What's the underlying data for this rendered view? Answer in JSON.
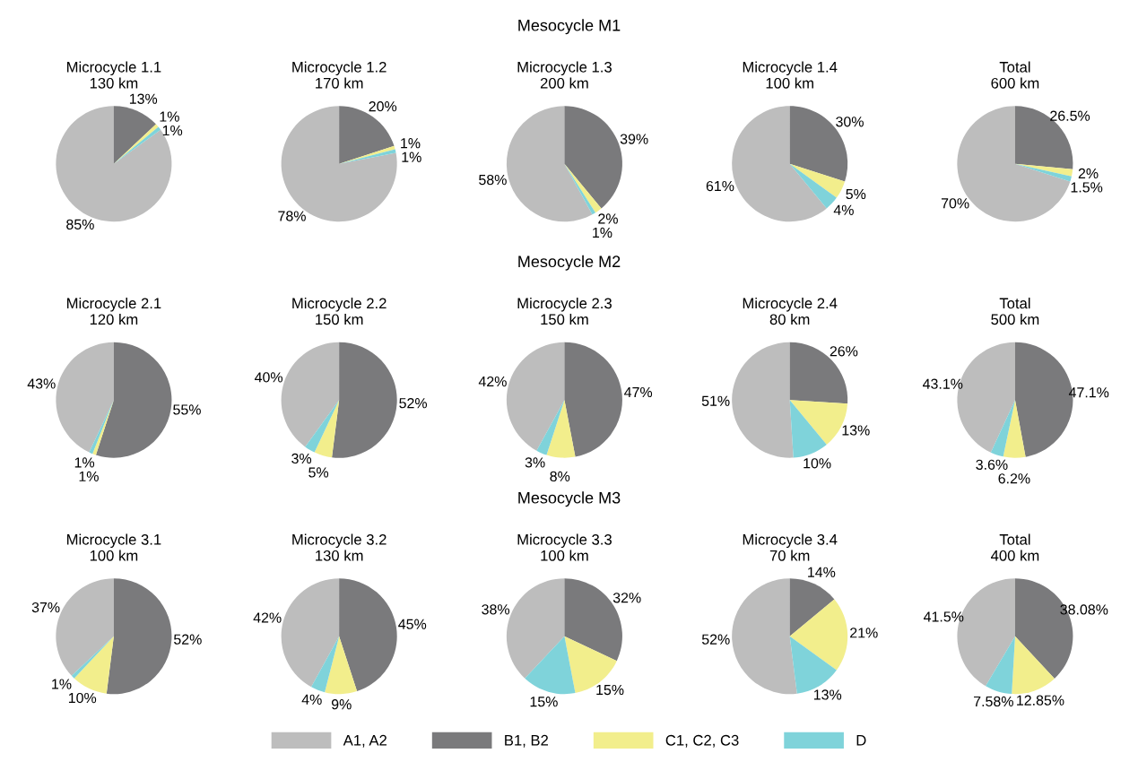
{
  "chart_data": [
    {
      "type": "pie",
      "title": "Microcycle 1.1",
      "subtitle": "130 km",
      "annotations": [
        "Mesocycle M1"
      ],
      "legend": "bottom",
      "categories": [
        "A1, A2",
        "B1, B2",
        "C1, C2, C3",
        "D"
      ],
      "colors": [
        "#bdbdbd",
        "#7a7a7c",
        "#f2ee8c",
        "#7fd3da"
      ],
      "values": [
        85,
        13,
        1,
        1
      ],
      "value_labels": [
        "85%",
        "13%",
        "1%",
        "1%"
      ]
    },
    {
      "type": "pie",
      "title": "Microcycle 1.2",
      "subtitle": "170 km",
      "colors": [
        "#bdbdbd",
        "#7a7a7c",
        "#f2ee8c",
        "#7fd3da"
      ],
      "values": [
        78,
        20,
        1,
        1
      ],
      "value_labels": [
        "78%",
        "20%",
        "1%",
        "1%"
      ]
    },
    {
      "type": "pie",
      "title": "Microcycle 1.3",
      "subtitle": "200 km",
      "colors": [
        "#bdbdbd",
        "#7a7a7c",
        "#f2ee8c",
        "#7fd3da"
      ],
      "values": [
        58,
        39,
        2,
        1
      ],
      "value_labels": [
        "58%",
        "39%",
        "2%",
        "1%"
      ]
    },
    {
      "type": "pie",
      "title": "Microcycle 1.4",
      "subtitle": "100 km",
      "colors": [
        "#bdbdbd",
        "#7a7a7c",
        "#f2ee8c",
        "#7fd3da"
      ],
      "values": [
        61,
        30,
        5,
        4
      ],
      "value_labels": [
        "61%",
        "30%",
        "5%",
        "4%"
      ]
    },
    {
      "type": "pie",
      "title": "Total",
      "subtitle": "600 km",
      "colors": [
        "#bdbdbd",
        "#7a7a7c",
        "#f2ee8c",
        "#7fd3da"
      ],
      "values": [
        70,
        26.5,
        2,
        1.5
      ],
      "value_labels": [
        "70%",
        "26.5%",
        "2%",
        "1.5%"
      ]
    },
    {
      "type": "pie",
      "title": "Microcycle 2.1",
      "subtitle": "120 km",
      "annotations": [
        "Mesocycle M2"
      ],
      "colors": [
        "#bdbdbd",
        "#7a7a7c",
        "#f2ee8c",
        "#7fd3da"
      ],
      "values": [
        43,
        55,
        1,
        1
      ],
      "value_labels": [
        "43%",
        "55%",
        "1%",
        "1%"
      ]
    },
    {
      "type": "pie",
      "title": "Microcycle 2.2",
      "subtitle": "150 km",
      "colors": [
        "#bdbdbd",
        "#7a7a7c",
        "#f2ee8c",
        "#7fd3da"
      ],
      "values": [
        40,
        52,
        5,
        3
      ],
      "value_labels": [
        "40%",
        "52%",
        "5%",
        "3%"
      ]
    },
    {
      "type": "pie",
      "title": "Microcycle 2.3",
      "subtitle": "150 km",
      "colors": [
        "#bdbdbd",
        "#7a7a7c",
        "#f2ee8c",
        "#7fd3da"
      ],
      "values": [
        42,
        47,
        8,
        3
      ],
      "value_labels": [
        "42%",
        "47%",
        "8%",
        "3%"
      ]
    },
    {
      "type": "pie",
      "title": "Microcycle 2.4",
      "subtitle": "80 km",
      "colors": [
        "#bdbdbd",
        "#7a7a7c",
        "#f2ee8c",
        "#7fd3da"
      ],
      "values": [
        51,
        26,
        13,
        10
      ],
      "value_labels": [
        "51%",
        "26%",
        "13%",
        "10%"
      ]
    },
    {
      "type": "pie",
      "title": "Total",
      "subtitle": "500 km",
      "colors": [
        "#bdbdbd",
        "#7a7a7c",
        "#f2ee8c",
        "#7fd3da"
      ],
      "values": [
        43.1,
        47.1,
        6.2,
        3.6
      ],
      "value_labels": [
        "43.1%",
        "47.1%",
        "6.2%",
        "3.6%"
      ]
    },
    {
      "type": "pie",
      "title": "Microcycle 3.1",
      "subtitle": "100 km",
      "annotations": [
        "Mesocycle M3"
      ],
      "colors": [
        "#bdbdbd",
        "#7a7a7c",
        "#f2ee8c",
        "#7fd3da"
      ],
      "values": [
        37,
        52,
        10,
        1
      ],
      "value_labels": [
        "37%",
        "52%",
        "10%",
        "1%"
      ]
    },
    {
      "type": "pie",
      "title": "Microcycle 3.2",
      "subtitle": "130 km",
      "colors": [
        "#bdbdbd",
        "#7a7a7c",
        "#f2ee8c",
        "#7fd3da"
      ],
      "values": [
        42,
        45,
        9,
        4
      ],
      "value_labels": [
        "42%",
        "45%",
        "9%",
        "4%"
      ]
    },
    {
      "type": "pie",
      "title": "Microcycle 3.3",
      "subtitle": "100 km",
      "colors": [
        "#bdbdbd",
        "#7a7a7c",
        "#f2ee8c",
        "#7fd3da"
      ],
      "values": [
        38,
        32,
        15,
        15
      ],
      "value_labels": [
        "38%",
        "32%",
        "15%",
        "15%"
      ]
    },
    {
      "type": "pie",
      "title": "Microcycle 3.4",
      "subtitle": "70 km",
      "colors": [
        "#bdbdbd",
        "#7a7a7c",
        "#f2ee8c",
        "#7fd3da"
      ],
      "values": [
        52,
        14,
        21,
        13
      ],
      "value_labels": [
        "52%",
        "14%",
        "21%",
        "13%"
      ]
    },
    {
      "type": "pie",
      "title": "Total",
      "subtitle": "400 km",
      "colors": [
        "#bdbdbd",
        "#7a7a7c",
        "#f2ee8c",
        "#7fd3da"
      ],
      "values": [
        41.5,
        38.08,
        12.85,
        7.58
      ],
      "value_labels": [
        "41.5%",
        "38.08%",
        "12.85%",
        "7.58%"
      ]
    }
  ]
}
